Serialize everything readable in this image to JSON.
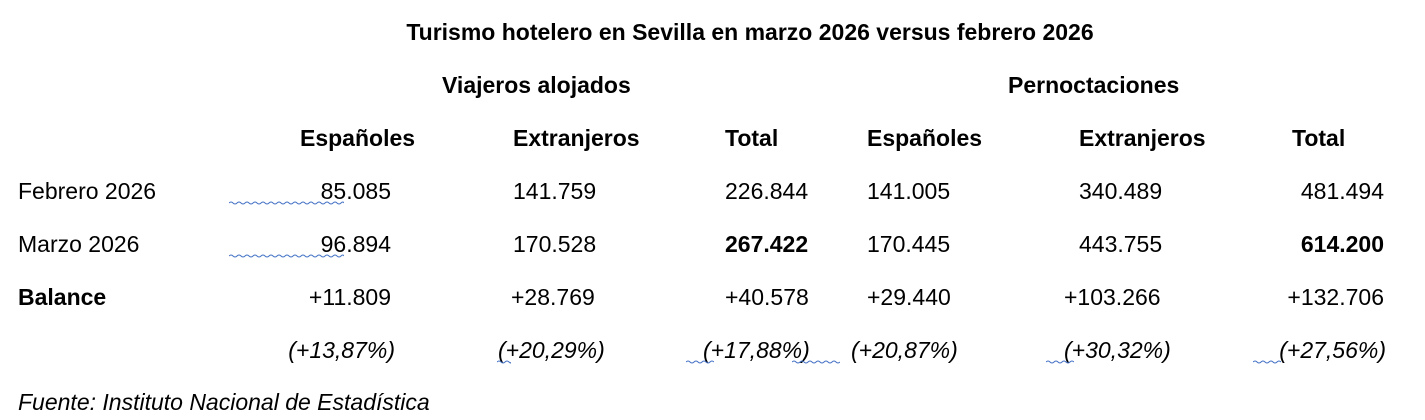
{
  "title": "Turismo hotelero en Sevilla en marzo 2026 versus febrero 2026",
  "groups": {
    "viajeros": "Viajeros alojados",
    "pernoctaciones": "Pernoctaciones"
  },
  "columns": [
    "Españoles",
    "Extranjeros",
    "Total",
    "Españoles",
    "Extranjeros",
    "Total"
  ],
  "rows": [
    {
      "label": "Febrero 2026",
      "values": [
        "85.085",
        "141.759",
        "226.844",
        "141.005",
        "340.489",
        "481.494"
      ]
    },
    {
      "label": "Marzo 2026",
      "values": [
        "96.894",
        "170.528",
        "267.422",
        "170.445",
        "443.755",
        "614.200"
      ]
    },
    {
      "label": "Balance",
      "values": [
        "+11.809",
        "+28.769",
        "+40.578",
        "+29.440",
        "+103.266",
        "+132.706"
      ]
    }
  ],
  "percentages": [
    "(+13,87%)",
    "(+20,29%)",
    "(+17,88%)",
    "(+20,87%)",
    "(+30,32%)",
    "(+27,56%)"
  ],
  "source": "Fuente: Instituto Nacional de Estadística",
  "colors": {
    "text": "#000000",
    "spellcheck_underline": "#4472c4"
  }
}
